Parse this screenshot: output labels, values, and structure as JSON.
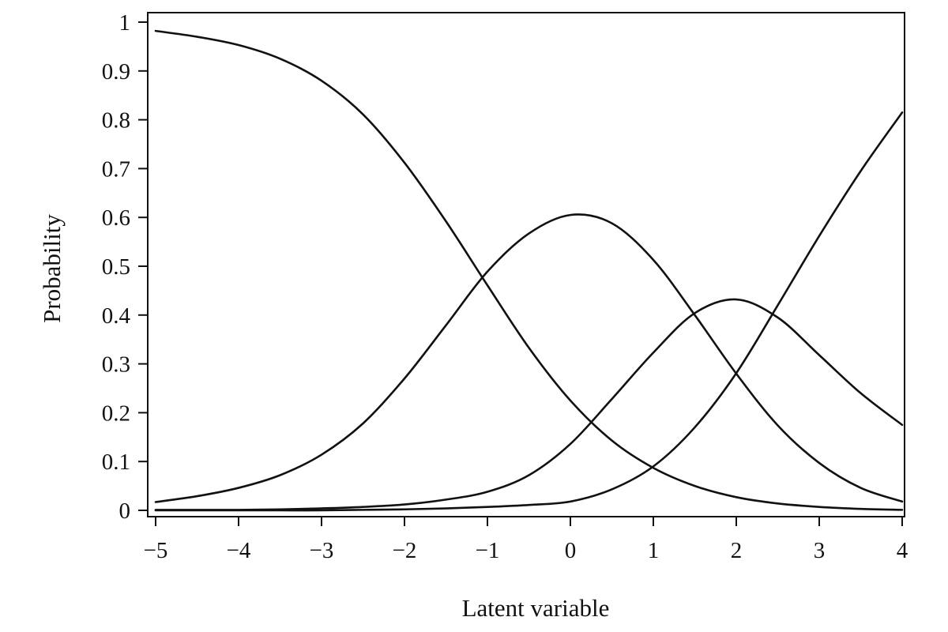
{
  "chart_data": {
    "type": "line",
    "title": "",
    "xlabel": "Latent variable",
    "ylabel": "Probability",
    "xlim": [
      -5,
      4
    ],
    "ylim": [
      0,
      1
    ],
    "grid": false,
    "legend": "none",
    "x_ticks": [
      "−5",
      "−4",
      "−3",
      "−2",
      "−1",
      "0",
      "1",
      "2",
      "3",
      "4"
    ],
    "y_ticks": [
      "0",
      "0.1",
      "0.2",
      "0.3",
      "0.4",
      "0.5",
      "0.6",
      "0.7",
      "0.8",
      "0.9",
      "1"
    ],
    "x": [
      -5,
      -4.5,
      -4,
      -3.5,
      -3,
      -2.5,
      -2,
      -1.5,
      -1,
      -0.5,
      0,
      0.5,
      1,
      1.5,
      2,
      2.5,
      3,
      3.5,
      4
    ],
    "series": [
      {
        "values": [
          0.982,
          0.97,
          0.953,
          0.925,
          0.88,
          0.811,
          0.712,
          0.592,
          0.461,
          0.333,
          0.225,
          0.143,
          0.087,
          0.05,
          0.027,
          0.014,
          0.007,
          0.003,
          0.001
        ]
      },
      {
        "values": [
          0.017,
          0.029,
          0.046,
          0.072,
          0.114,
          0.178,
          0.27,
          0.379,
          0.489,
          0.567,
          0.605,
          0.588,
          0.513,
          0.4,
          0.28,
          0.174,
          0.097,
          0.046,
          0.018
        ]
      },
      {
        "values": [
          0.001,
          0.001,
          0.001,
          0.002,
          0.004,
          0.007,
          0.012,
          0.022,
          0.038,
          0.072,
          0.136,
          0.228,
          0.323,
          0.404,
          0.432,
          0.395,
          0.318,
          0.24,
          0.175
        ]
      },
      {
        "values": [
          0.0,
          0.0,
          0.0,
          0.0,
          0.0,
          0.001,
          0.002,
          0.004,
          0.007,
          0.011,
          0.018,
          0.043,
          0.09,
          0.17,
          0.281,
          0.42,
          0.562,
          0.695,
          0.815
        ]
      }
    ],
    "colors": {
      "line": "#111111",
      "axis": "#111111",
      "background": "#ffffff"
    }
  }
}
